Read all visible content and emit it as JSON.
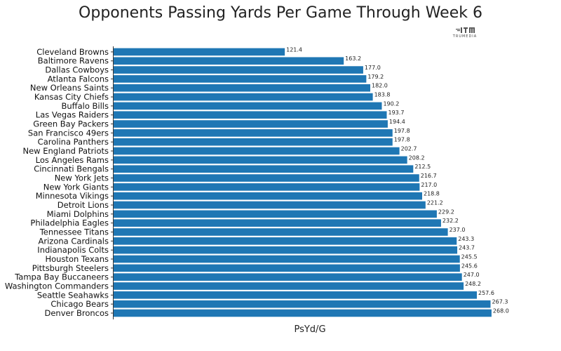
{
  "chart_data": {
    "type": "bar",
    "orientation": "horizontal",
    "title": "Opponents Passing Yards Per Game Through Week 6",
    "xlabel": "PsYd/G",
    "ylabel": "",
    "xlim": [
      0,
      275
    ],
    "grid": false,
    "legend": "none",
    "bar_color": "#1f77b4",
    "categories": [
      "Cleveland Browns",
      "Baltimore Ravens",
      "Dallas Cowboys",
      "Atlanta Falcons",
      "New Orleans Saints",
      "Kansas City Chiefs",
      "Buffalo Bills",
      "Las Vegas Raiders",
      "Green Bay Packers",
      "San Francisco 49ers",
      "Carolina Panthers",
      "New England Patriots",
      "Los Angeles Rams",
      "Cincinnati Bengals",
      "New York Jets",
      "New York Giants",
      "Minnesota Vikings",
      "Detroit Lions",
      "Miami Dolphins",
      "Philadelphia Eagles",
      "Tennessee Titans",
      "Arizona Cardinals",
      "Indianapolis Colts",
      "Houston Texans",
      "Pittsburgh Steelers",
      "Tampa Bay Buccaneers",
      "Washington Commanders",
      "Seattle Seahawks",
      "Chicago Bears",
      "Denver Broncos"
    ],
    "values": [
      121.4,
      163.2,
      177.0,
      179.2,
      182.0,
      183.8,
      190.2,
      193.7,
      194.4,
      197.8,
      197.8,
      202.7,
      208.2,
      212.5,
      216.7,
      217.0,
      218.8,
      221.2,
      229.2,
      232.2,
      237.0,
      243.3,
      243.7,
      245.5,
      245.6,
      247.0,
      248.2,
      257.6,
      267.3,
      268.0
    ],
    "value_labels": [
      "121.4",
      "163.2",
      "177.0",
      "179.2",
      "182.0",
      "183.8",
      "190.2",
      "193.7",
      "194.4",
      "197.8",
      "197.8",
      "202.7",
      "208.2",
      "212.5",
      "216.7",
      "217.0",
      "218.8",
      "221.2",
      "229.2",
      "232.2",
      "237.0",
      "243.3",
      "243.7",
      "245.5",
      "245.6",
      "247.0",
      "248.2",
      "257.6",
      "267.3",
      "268.0"
    ]
  },
  "branding": {
    "logo_text": "TRUMEDIA",
    "logo_icon": "trumedia-logo-icon",
    "color": "#555555"
  }
}
